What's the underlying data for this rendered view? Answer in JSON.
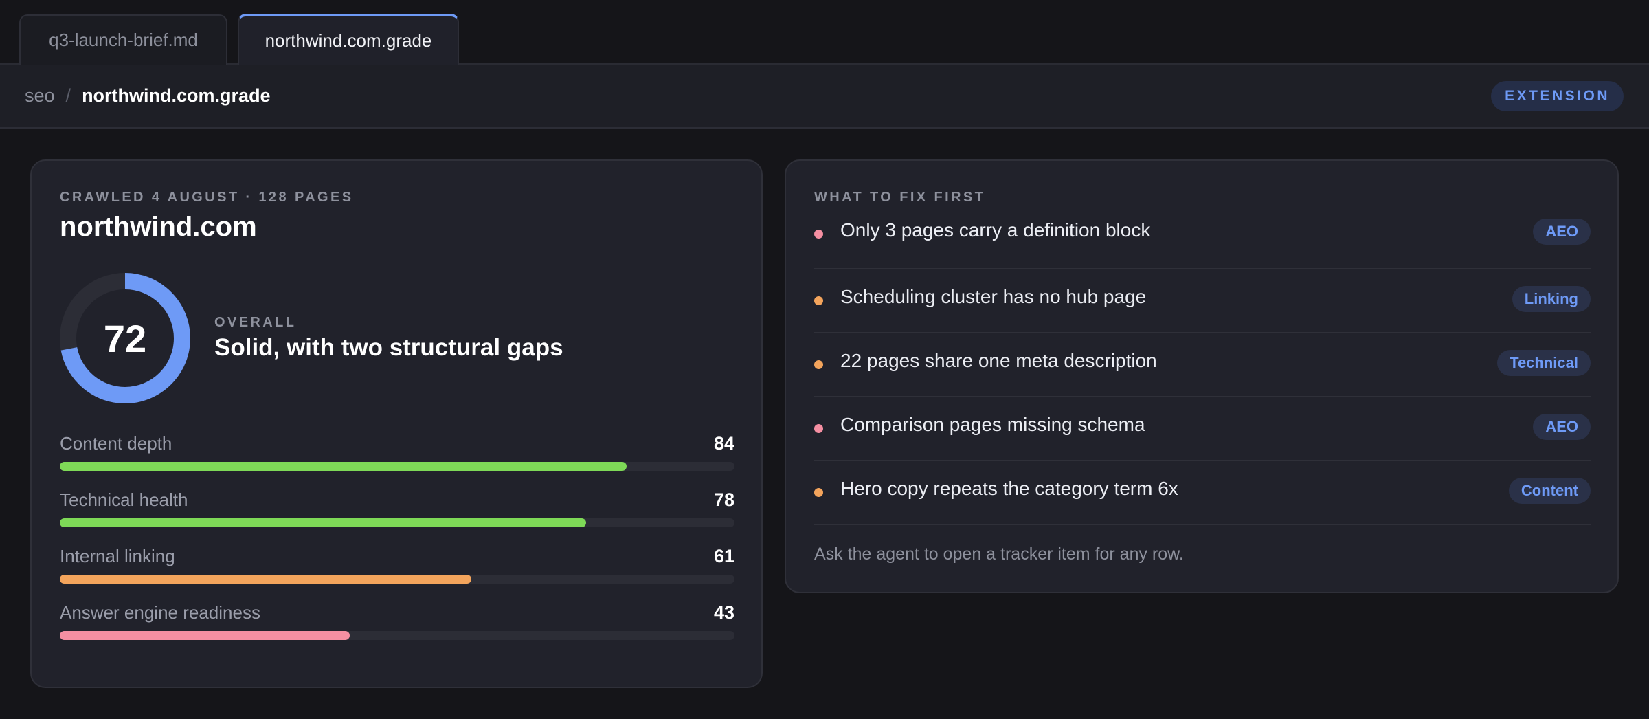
{
  "tabs": [
    {
      "label": "q3-launch-brief.md",
      "active": false
    },
    {
      "label": "northwind.com.grade",
      "active": true
    }
  ],
  "breadcrumb": {
    "root": "seo",
    "separator": "/",
    "current": "northwind.com.grade"
  },
  "badge": "EXTENSION",
  "grade": {
    "eyebrow": "CRAWLED 4 AUGUST · 128 PAGES",
    "domain": "northwind.com",
    "score": "72",
    "score_fraction": 0.72,
    "overall_label": "OVERALL",
    "overall_text": "Solid, with two structural gaps",
    "metrics": [
      {
        "label": "Content depth",
        "value": "84",
        "fraction": 0.84,
        "color": "#7ed957"
      },
      {
        "label": "Technical health",
        "value": "78",
        "fraction": 0.78,
        "color": "#7ed957"
      },
      {
        "label": "Internal linking",
        "value": "61",
        "fraction": 0.61,
        "color": "#f3a45c"
      },
      {
        "label": "Answer engine readiness",
        "value": "43",
        "fraction": 0.43,
        "color": "#f58fa2"
      }
    ]
  },
  "fixes": {
    "eyebrow": "WHAT TO FIX FIRST",
    "items": [
      {
        "text": "Only 3 pages carry a definition block",
        "tag": "AEO",
        "severity_color": "#f58fa2"
      },
      {
        "text": "Scheduling cluster has no hub page",
        "tag": "Linking",
        "severity_color": "#f3a45c"
      },
      {
        "text": "22 pages share one meta description",
        "tag": "Technical",
        "severity_color": "#f3a45c"
      },
      {
        "text": "Comparison pages missing schema",
        "tag": "AEO",
        "severity_color": "#f58fa2"
      },
      {
        "text": "Hero copy repeats the category term 6x",
        "tag": "Content",
        "severity_color": "#f3a45c"
      }
    ],
    "footer": "Ask the agent to open a tracker item for any row."
  },
  "colors": {
    "accent": "#6e9af6",
    "donut_track": "#2c2d36"
  }
}
